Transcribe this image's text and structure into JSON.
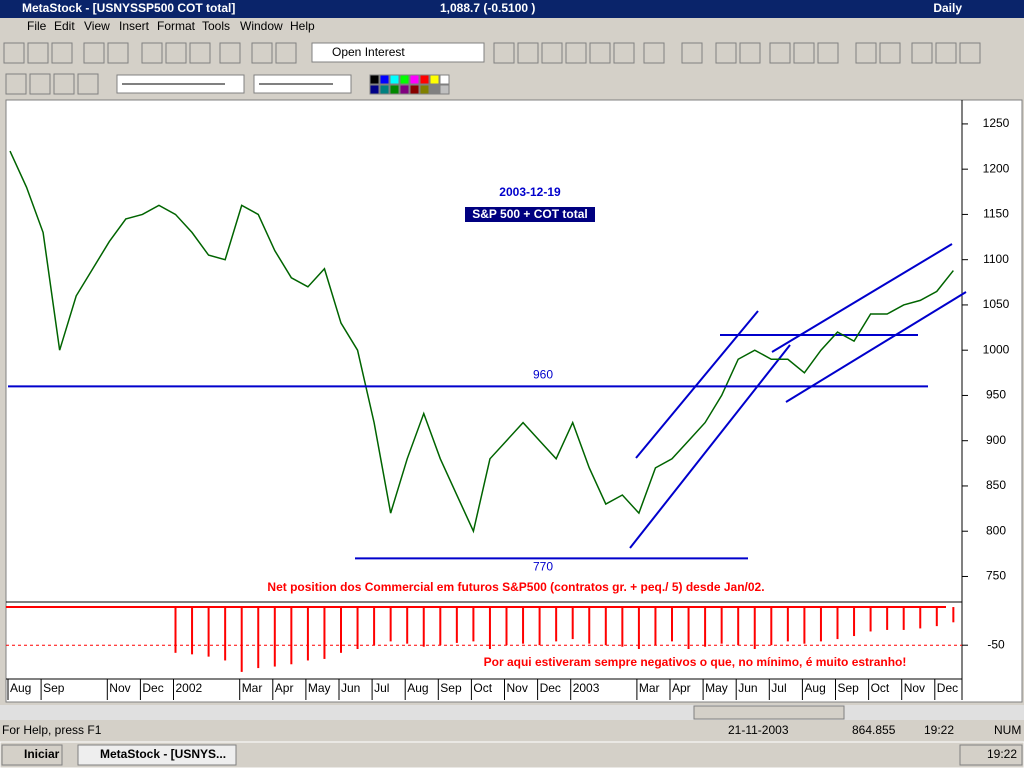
{
  "window": {
    "title": "MetaStock - [USNYSSP500 COT total]",
    "quote": "1,088.7 (-0.5100 )",
    "period": "Daily"
  },
  "menu": [
    "File",
    "Edit",
    "View",
    "Insert",
    "Format",
    "Tools",
    "Window",
    "Help"
  ],
  "toolbar": {
    "indicator": "Open Interest"
  },
  "chart_data": [
    {
      "type": "line",
      "title": "S&P 500 + COT total",
      "subtitle": "2003-12-19",
      "color": "#006400",
      "values": [
        1220,
        1180,
        1130,
        1000,
        1060,
        1090,
        1120,
        1145,
        1150,
        1160,
        1150,
        1130,
        1105,
        1100,
        1160,
        1150,
        1110,
        1080,
        1070,
        1090,
        1030,
        1000,
        920,
        820,
        880,
        930,
        880,
        840,
        800,
        880,
        900,
        920,
        900,
        880,
        920,
        870,
        830,
        840,
        820,
        870,
        880,
        900,
        920,
        950,
        990,
        1000,
        990,
        990,
        975,
        1000,
        1020,
        1010,
        1040,
        1040,
        1050,
        1055,
        1065,
        1088
      ],
      "ylim": [
        724,
        1272
      ],
      "yticks": [
        750,
        800,
        850,
        900,
        950,
        1000,
        1050,
        1100,
        1150,
        1200,
        1250
      ],
      "hlines": [
        960,
        770
      ],
      "hline_color": "#0000cc"
    },
    {
      "type": "bar",
      "title": "Net position dos Commercial em futuros S&P500 (contratos gr. + peq./ 5) desde Jan/02.",
      "annotation": "Por aqui estiveram sempre negativos o que, no mínimo, é muito estranho!",
      "color": "#ff0000",
      "categories": [
        "Aug",
        null,
        "Sep",
        null,
        null,
        null,
        "Nov",
        null,
        "Dec",
        null,
        "2002",
        null,
        null,
        null,
        "Mar",
        null,
        "Apr",
        null,
        "May",
        null,
        "Jun",
        null,
        "Jul",
        null,
        "Aug",
        null,
        "Sep",
        null,
        "Oct",
        null,
        "Nov",
        null,
        "Dec",
        null,
        "2003",
        null,
        null,
        null,
        "Mar",
        null,
        "Apr",
        null,
        "May",
        null,
        "Jun",
        null,
        "Jul",
        null,
        "Aug",
        null,
        "Sep",
        null,
        "Oct",
        null,
        "Nov",
        null,
        "Dec",
        null
      ],
      "values": [
        null,
        null,
        null,
        null,
        null,
        null,
        null,
        null,
        null,
        null,
        -60,
        -62,
        -65,
        -70,
        -85,
        -80,
        -78,
        -75,
        -70,
        -68,
        -60,
        -55,
        -50,
        -45,
        -48,
        -52,
        -50,
        -47,
        -45,
        -55,
        -50,
        -48,
        -50,
        -45,
        -42,
        -48,
        -50,
        -52,
        -55,
        -50,
        -45,
        -55,
        -52,
        -48,
        -50,
        -55,
        -50,
        -45,
        -48,
        -45,
        -42,
        -38,
        -32,
        -30,
        -30,
        -28,
        -25,
        -20
      ],
      "ylim": [
        -93,
        4
      ],
      "yticks": [
        -50
      ],
      "grid": true
    }
  ],
  "status": {
    "help": "For Help, press F1",
    "date": "21-11-2003",
    "value": "864.855",
    "time": "19:22",
    "mode": "NUM"
  },
  "taskbar": {
    "start": "Iniciar",
    "task": "MetaStock - [USNYS...",
    "clock": "19:22"
  }
}
